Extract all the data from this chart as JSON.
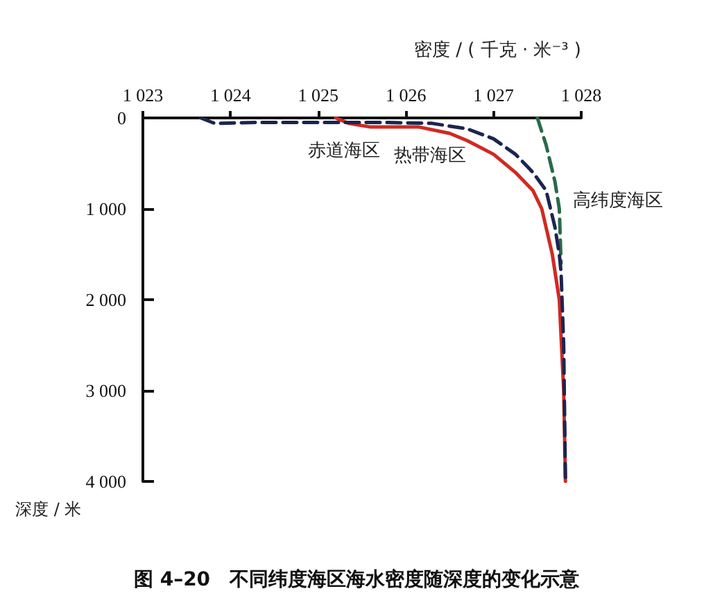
{
  "chart_data": {
    "type": "line",
    "title": "图 4–20　不同纬度海区海水密度随深度的变化示意",
    "xlabel": "密度 / ( 千克 · 米⁻³ )",
    "ylabel": "深度 / 米",
    "xlim": [
      1023,
      1028
    ],
    "xticks": [
      {
        "value": 1023,
        "label": "1 023"
      },
      {
        "value": 1024,
        "label": "1 024"
      },
      {
        "value": 1025,
        "label": "1 025"
      },
      {
        "value": 1026,
        "label": "1 026"
      },
      {
        "value": 1027,
        "label": "1 027"
      },
      {
        "value": 1028,
        "label": "1 028"
      }
    ],
    "ylim": [
      4000,
      0
    ],
    "yticks": [
      0,
      {
        "value": 1000,
        "label": "1 000"
      },
      {
        "value": 2000,
        "label": "2 000"
      },
      {
        "value": 3000,
        "label": "3 000"
      },
      {
        "value": 4000,
        "label": "4 000"
      }
    ],
    "grid": false,
    "legend": false,
    "marker": "none",
    "series": [
      {
        "name": "赤道海区",
        "color": "#1c2550",
        "line_style": "dashed",
        "x": [
          1023.66,
          1023.82,
          1024.3,
          1025.2,
          1025.8,
          1026.3,
          1026.7,
          1027.0,
          1027.25,
          1027.45,
          1027.6,
          1027.7,
          1027.75,
          1027.77,
          1027.8,
          1027.82
        ],
        "values": [
          0,
          60,
          50,
          50,
          50,
          60,
          120,
          230,
          400,
          600,
          800,
          1200,
          1500,
          1700,
          2500,
          4000
        ]
      },
      {
        "name": "热带海区",
        "color": "#d02a22",
        "line_style": "solid",
        "x": [
          1025.2,
          1025.35,
          1025.6,
          1026.15,
          1026.5,
          1026.7,
          1027.0,
          1027.25,
          1027.45,
          1027.55,
          1027.67,
          1027.75,
          1027.8,
          1027.82
        ],
        "values": [
          0,
          60,
          100,
          100,
          170,
          250,
          400,
          600,
          800,
          1000,
          1500,
          2000,
          3000,
          4000
        ]
      },
      {
        "name": "高纬度海区",
        "color": "#2a6a4a",
        "line_style": "dashed",
        "x": [
          1027.5,
          1027.6,
          1027.7,
          1027.75,
          1027.77
        ],
        "values": [
          0,
          300,
          700,
          1000,
          1600
        ]
      }
    ]
  }
}
